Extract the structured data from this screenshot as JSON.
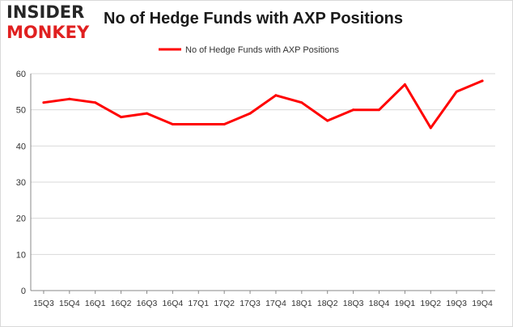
{
  "logo": {
    "line1": "INSIDER",
    "line2": "MONKEY"
  },
  "colors": {
    "line": "#ff0000",
    "grid": "#d9d9d9",
    "axis": "#888888",
    "text": "#333333",
    "logo_red": "#e02020"
  },
  "chart_data": {
    "type": "line",
    "title": "No of Hedge Funds with AXP Positions",
    "legend_position": "top",
    "grid": true,
    "categories": [
      "15Q3",
      "15Q4",
      "16Q1",
      "16Q2",
      "16Q3",
      "16Q4",
      "17Q1",
      "17Q2",
      "17Q3",
      "17Q4",
      "18Q1",
      "18Q2",
      "18Q3",
      "18Q4",
      "19Q1",
      "19Q2",
      "19Q3",
      "19Q4"
    ],
    "series": [
      {
        "name": "No of Hedge Funds with AXP Positions",
        "values": [
          52,
          53,
          52,
          48,
          49,
          46,
          46,
          46,
          49,
          54,
          52,
          47,
          50,
          50,
          57,
          45,
          55,
          58
        ]
      }
    ],
    "ylim": [
      0,
      60
    ],
    "yticks": [
      0,
      10,
      20,
      30,
      40,
      50,
      60
    ],
    "xlabel": "",
    "ylabel": ""
  }
}
